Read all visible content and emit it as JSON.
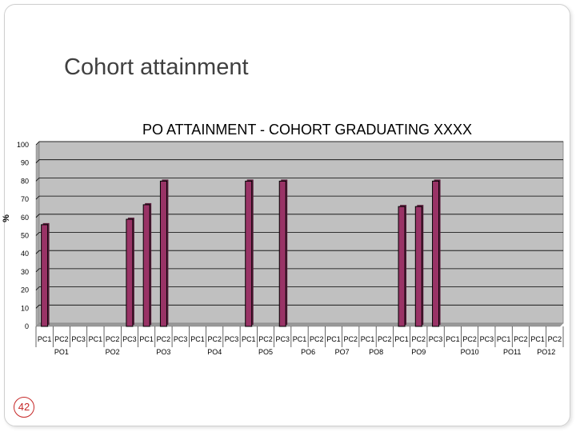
{
  "slide": {
    "title": "Cohort attainment",
    "page_number": "42"
  },
  "chart_data": {
    "type": "bar",
    "title": "PO ATTAINMENT - COHORT GRADUATING XXXX",
    "xlabel": "",
    "ylabel": "%",
    "ylim": [
      0,
      100
    ],
    "yticks": [
      0,
      10,
      20,
      30,
      40,
      50,
      60,
      70,
      80,
      90,
      100
    ],
    "grid": true,
    "groups": [
      {
        "label": "PO1",
        "categories": [
          "PC1",
          "PC2",
          "PC3"
        ],
        "values": [
          56,
          0,
          0
        ]
      },
      {
        "label": "PO2",
        "categories": [
          "PC1",
          "PC2",
          "PC3"
        ],
        "values": [
          0,
          0,
          59
        ]
      },
      {
        "label": "PO3",
        "categories": [
          "PC1",
          "PC2",
          "PC3"
        ],
        "values": [
          67,
          80,
          0
        ]
      },
      {
        "label": "PO4",
        "categories": [
          "PC1",
          "PC2",
          "PC3"
        ],
        "values": [
          0,
          0,
          0
        ]
      },
      {
        "label": "PO5",
        "categories": [
          "PC1",
          "PC2",
          "PC3"
        ],
        "values": [
          80,
          0,
          80
        ]
      },
      {
        "label": "PO6",
        "categories": [
          "PC1",
          "PC2"
        ],
        "values": [
          0,
          0
        ]
      },
      {
        "label": "PO7",
        "categories": [
          "PC1",
          "PC2"
        ],
        "values": [
          0,
          0
        ]
      },
      {
        "label": "PO8",
        "categories": [
          "PC1",
          "PC2"
        ],
        "values": [
          0,
          0
        ]
      },
      {
        "label": "PO9",
        "categories": [
          "PC1",
          "PC2",
          "PC3"
        ],
        "values": [
          66,
          66,
          80
        ]
      },
      {
        "label": "PO10",
        "categories": [
          "PC1",
          "PC2",
          "PC3"
        ],
        "values": [
          0,
          0,
          0
        ]
      },
      {
        "label": "PO11",
        "categories": [
          "PC1",
          "PC2"
        ],
        "values": [
          0,
          0
        ]
      },
      {
        "label": "PO12",
        "categories": [
          "PC1",
          "PC2"
        ],
        "values": [
          0,
          0
        ]
      }
    ],
    "colors": {
      "bar": "#993366",
      "bar_edge": "#000000",
      "plot_background": "#c0c0c0",
      "grid": "#000000"
    }
  }
}
